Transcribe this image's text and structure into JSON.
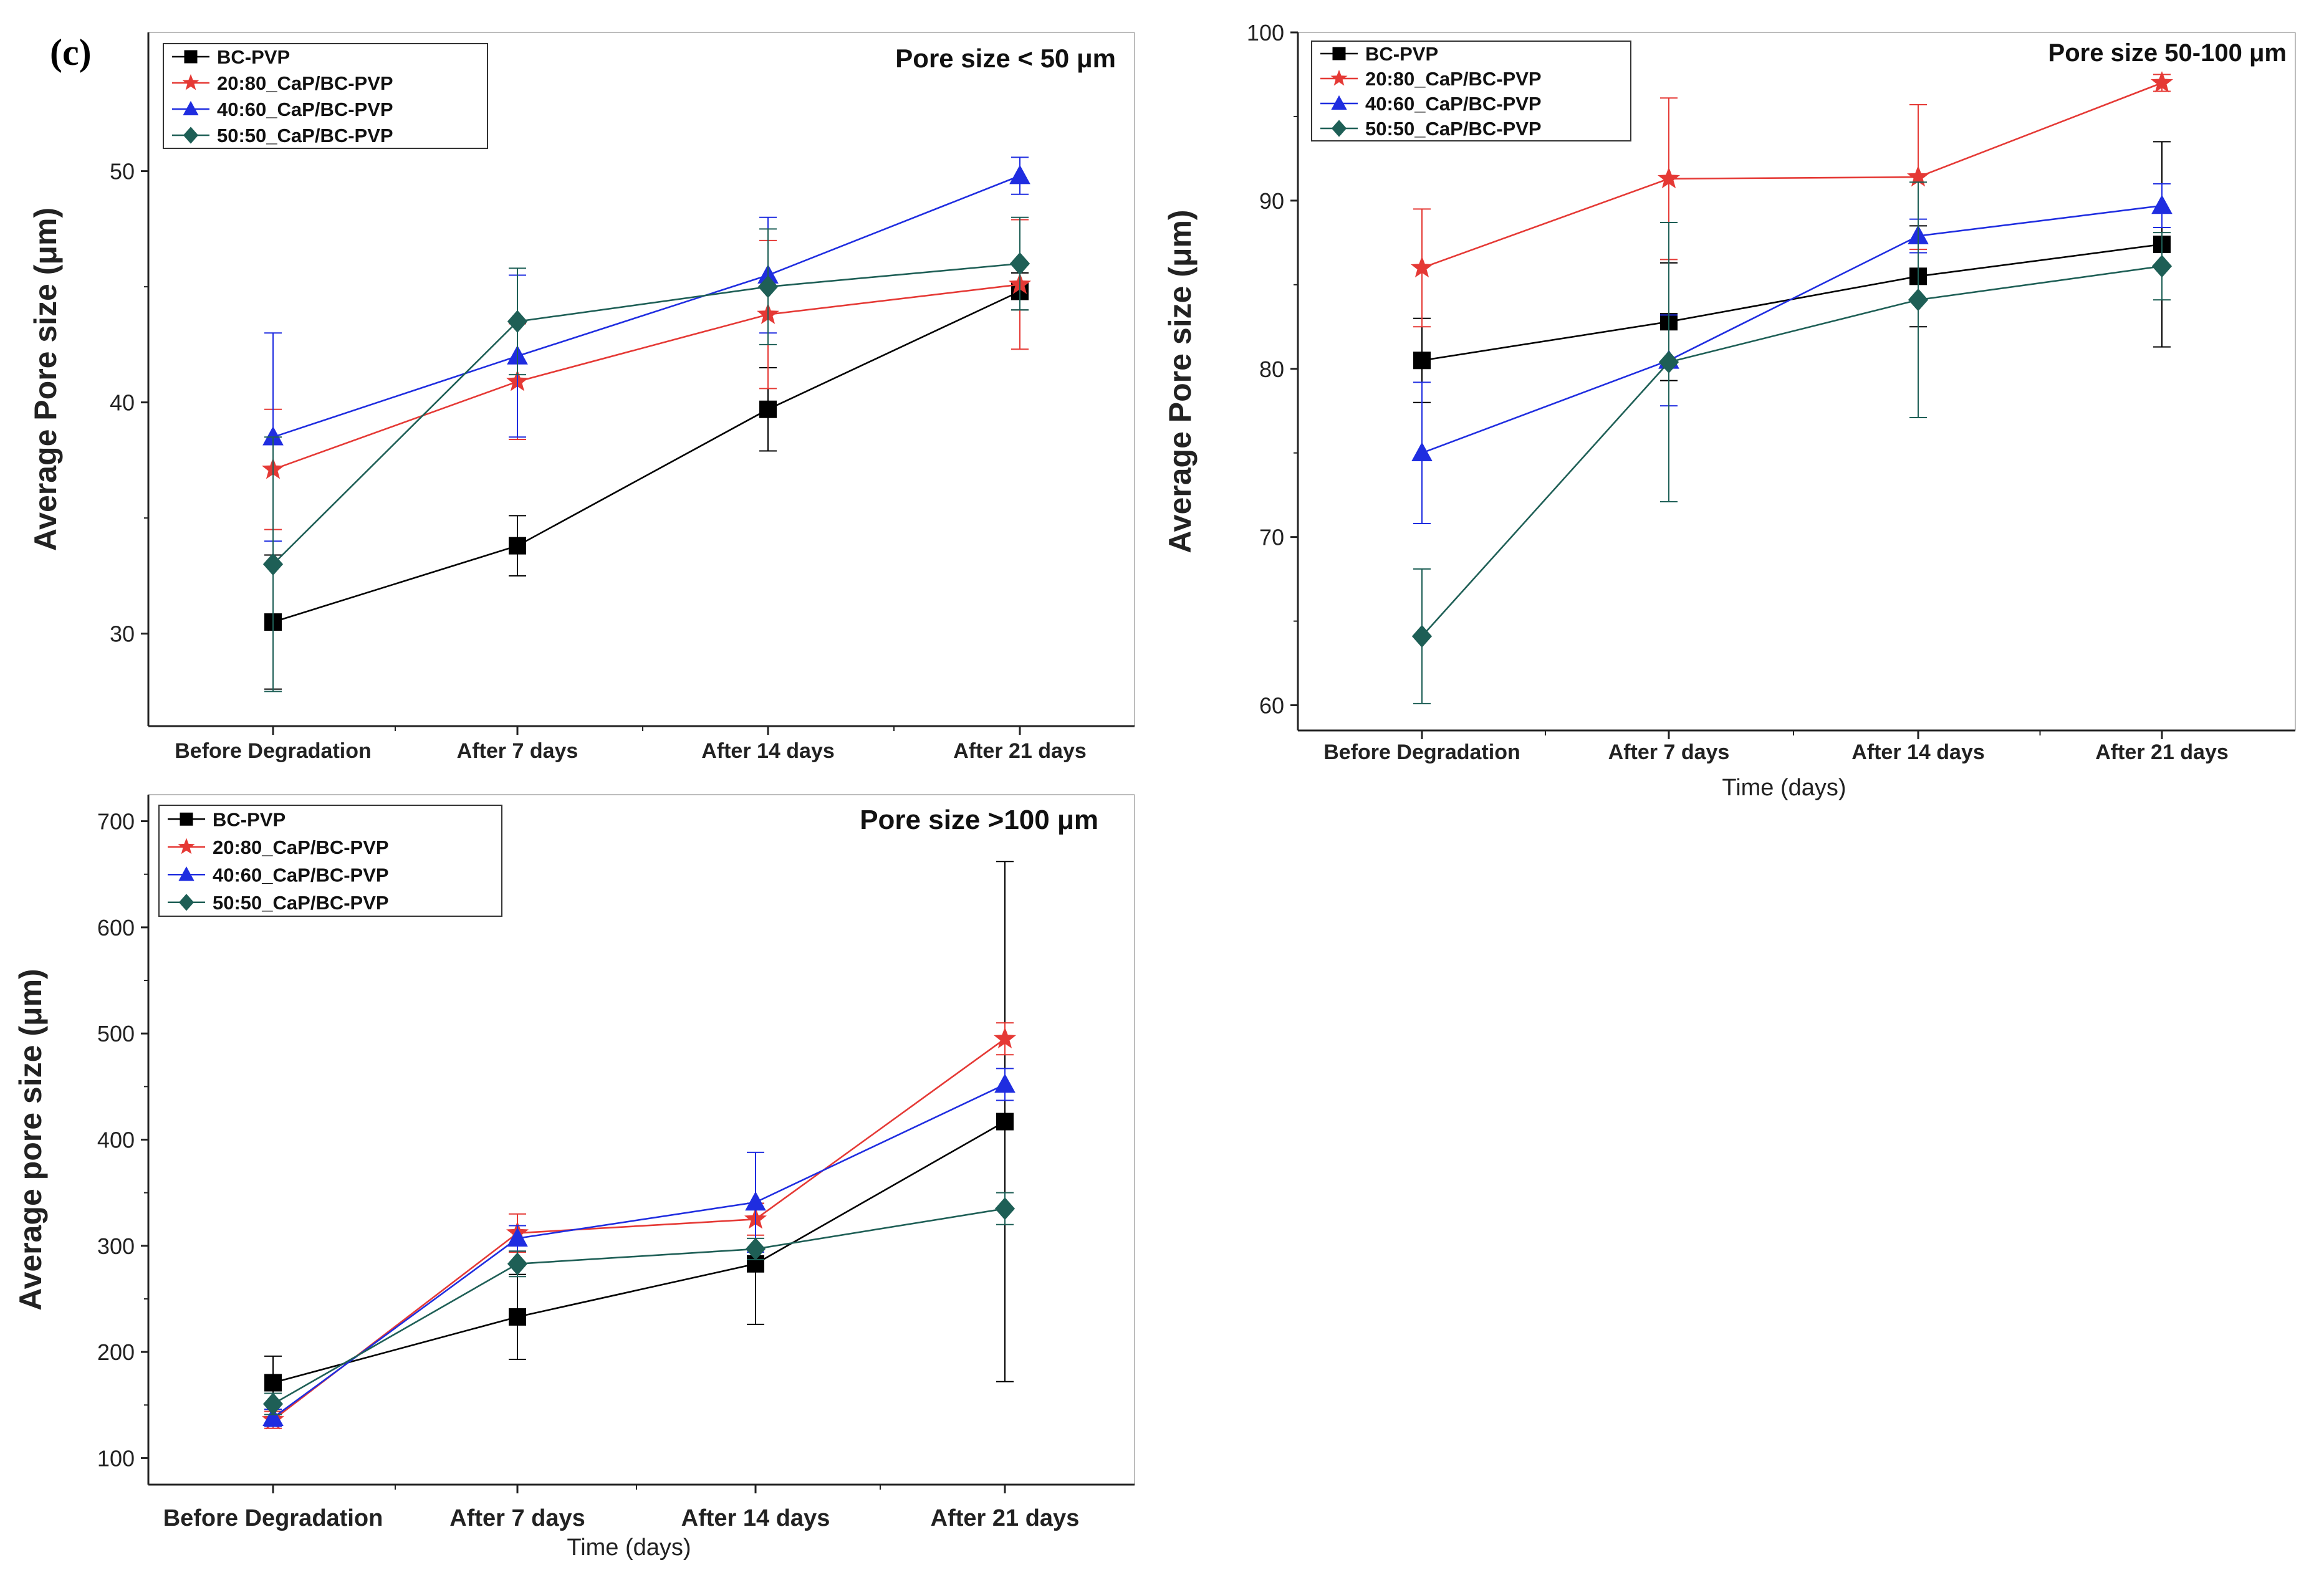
{
  "figure": {
    "panel_label": "(c)"
  },
  "chart_data": [
    {
      "type": "line",
      "title": "Pore size < 50 μm",
      "xlabel": "",
      "ylabel": "Average Pore size (μm)",
      "categories": [
        "Before Degradation",
        "After 7 days",
        "After 14 days",
        "After 21 days"
      ],
      "ylim": [
        26,
        56
      ],
      "yticks": [
        30,
        40,
        50
      ],
      "series": [
        {
          "name": "BC-PVP",
          "color": "#000000",
          "marker": "square",
          "values": [
            30.5,
            33.8,
            39.7,
            44.8
          ],
          "errors": [
            2.9,
            1.3,
            1.8,
            0.8
          ]
        },
        {
          "name": "20:80_CaP/BC-PVP",
          "color": "#e53935",
          "marker": "star",
          "values": [
            37.1,
            40.9,
            43.8,
            45.1
          ],
          "errors": [
            2.6,
            2.5,
            3.2,
            2.8
          ]
        },
        {
          "name": "40:60_CaP/BC-PVP",
          "color": "#1f2de0",
          "marker": "triangle",
          "values": [
            38.5,
            42.0,
            45.5,
            49.8
          ],
          "errors": [
            4.5,
            3.5,
            2.5,
            0.8
          ]
        },
        {
          "name": "50:50_CaP/BC-PVP",
          "color": "#1e5f56",
          "marker": "diamond",
          "values": [
            33.0,
            43.5,
            45.0,
            46.0
          ],
          "errors": [
            5.5,
            2.3,
            2.5,
            2.0
          ]
        }
      ]
    },
    {
      "type": "line",
      "title": "Pore size 50-100 μm",
      "xlabel": "Time (days)",
      "ylabel": "Average Pore size (μm)",
      "categories": [
        "Before Degradation",
        "After 7 days",
        "After 14 days",
        "After 21 days"
      ],
      "ylim": [
        58.5,
        100
      ],
      "yticks": [
        60,
        70,
        80,
        90,
        100
      ],
      "series": [
        {
          "name": "BC-PVP",
          "color": "#000000",
          "marker": "square",
          "values": [
            80.5,
            82.8,
            85.5,
            87.4
          ],
          "errors": [
            2.5,
            3.5,
            3.0,
            6.1
          ]
        },
        {
          "name": "20:80_CaP/BC-PVP",
          "color": "#e53935",
          "marker": "star",
          "values": [
            86.0,
            91.3,
            91.4,
            97.0
          ],
          "errors": [
            3.5,
            4.8,
            4.3,
            0.5
          ]
        },
        {
          "name": "40:60_CaP/BC-PVP",
          "color": "#1f2de0",
          "marker": "triangle",
          "values": [
            75.0,
            80.5,
            87.9,
            89.7
          ],
          "errors": [
            4.2,
            2.7,
            1.0,
            1.3
          ]
        },
        {
          "name": "50:50_CaP/BC-PVP",
          "color": "#1e5f56",
          "marker": "diamond",
          "values": [
            64.1,
            80.4,
            84.1,
            86.1
          ],
          "errors": [
            4.0,
            8.3,
            7.0,
            2.0
          ]
        }
      ]
    },
    {
      "type": "line",
      "title": "Pore size >100 μm",
      "xlabel": "Time (days)",
      "ylabel": "Average pore size (μm)",
      "categories": [
        "Before Degradation",
        "After 7 days",
        "After 14 days",
        "After 21 days"
      ],
      "ylim": [
        75,
        725
      ],
      "yticks": [
        100,
        200,
        300,
        400,
        500,
        600,
        700
      ],
      "series": [
        {
          "name": "BC-PVP",
          "color": "#000000",
          "marker": "square",
          "values": [
            171,
            233,
            283,
            417
          ],
          "errors": [
            25,
            40,
            57,
            245
          ]
        },
        {
          "name": "20:80_CaP/BC-PVP",
          "color": "#e53935",
          "marker": "star",
          "values": [
            136,
            312,
            325,
            495
          ],
          "errors": [
            8,
            18,
            15,
            15
          ]
        },
        {
          "name": "40:60_CaP/BC-PVP",
          "color": "#1f2de0",
          "marker": "triangle",
          "values": [
            138,
            307,
            341,
            452
          ],
          "errors": [
            8,
            12,
            47,
            15
          ]
        },
        {
          "name": "50:50_CaP/BC-PVP",
          "color": "#1e5f56",
          "marker": "diamond",
          "values": [
            151,
            283,
            297,
            335
          ],
          "errors": [
            10,
            12,
            10,
            15
          ]
        }
      ]
    }
  ]
}
